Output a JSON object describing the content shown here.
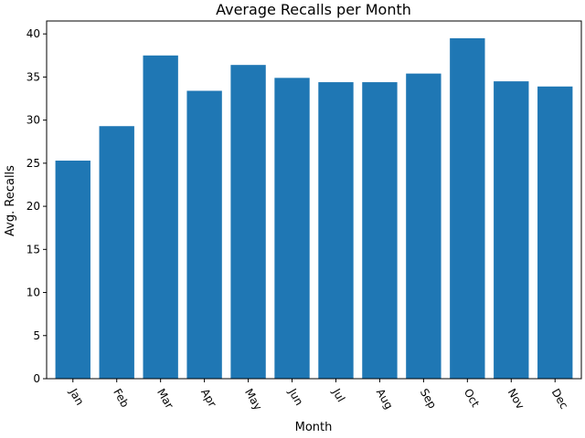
{
  "chart_data": {
    "type": "bar",
    "title": "Average Recalls per Month",
    "xlabel": "Month",
    "ylabel": "Avg. Recalls",
    "categories": [
      "Jan",
      "Feb",
      "Mar",
      "Apr",
      "May",
      "Jun",
      "Jul",
      "Aug",
      "Sep",
      "Oct",
      "Nov",
      "Dec"
    ],
    "values": [
      25.3,
      29.3,
      37.5,
      33.4,
      36.4,
      34.9,
      34.4,
      34.4,
      35.4,
      39.5,
      34.5,
      33.9
    ],
    "ylim": [
      0,
      41.5
    ],
    "yticks": [
      0,
      5,
      10,
      15,
      20,
      25,
      30,
      35,
      40
    ],
    "grid": false,
    "legend": "none",
    "colors": {
      "bar": "#1f77b4",
      "axis": "#000000",
      "background": "#ffffff"
    }
  }
}
